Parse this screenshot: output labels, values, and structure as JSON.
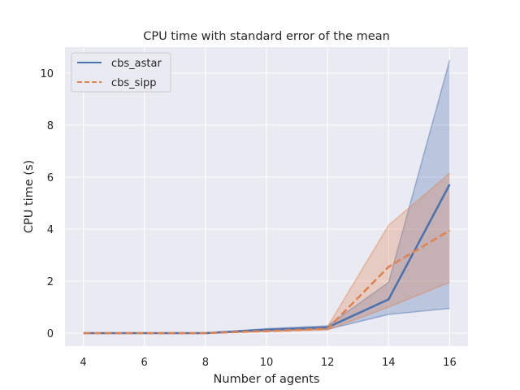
{
  "chart_data": {
    "type": "line",
    "title": "CPU time with standard error of the mean",
    "xlabel": "Number of agents",
    "ylabel": "CPU time (s)",
    "x": [
      4,
      6,
      8,
      10,
      12,
      14,
      16
    ],
    "xlim": [
      3.4,
      16.6
    ],
    "ylim": [
      -0.5,
      11.0
    ],
    "xticks": [
      4,
      6,
      8,
      10,
      12,
      14,
      16
    ],
    "yticks": [
      0,
      2,
      4,
      6,
      8,
      10
    ],
    "grid": true,
    "legend_position": "top-left",
    "background": "#eaeaf2",
    "series": [
      {
        "name": "cbs_astar",
        "color": "#4c72b0",
        "linestyle": "solid",
        "values": [
          0.0,
          0.0,
          0.0,
          0.13,
          0.22,
          1.3,
          5.72
        ],
        "lower": [
          0.0,
          0.0,
          0.0,
          0.09,
          0.15,
          0.72,
          0.95
        ],
        "upper": [
          0.0,
          0.0,
          0.0,
          0.17,
          0.28,
          1.95,
          10.5
        ]
      },
      {
        "name": "cbs_sipp",
        "color": "#dd8452",
        "linestyle": "dashed",
        "values": [
          0.0,
          0.0,
          0.0,
          0.08,
          0.17,
          2.55,
          3.95
        ],
        "lower": [
          0.0,
          0.0,
          0.0,
          0.05,
          0.12,
          1.0,
          1.95
        ],
        "upper": [
          0.0,
          0.0,
          0.0,
          0.11,
          0.25,
          4.15,
          6.15
        ]
      }
    ]
  }
}
